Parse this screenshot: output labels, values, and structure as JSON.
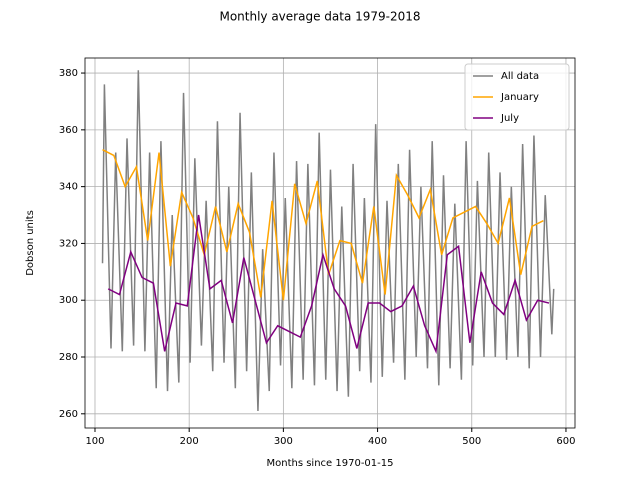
{
  "chart_data": {
    "type": "line",
    "title": "Monthly average data 1979-2018",
    "xlabel": "Months since 1970-01-15",
    "ylabel": "Dobson units",
    "xlim": [
      89.4,
      609.6
    ],
    "ylim": [
      255,
      385.3
    ],
    "xticks": [
      100,
      200,
      300,
      400,
      500,
      600
    ],
    "yticks": [
      260,
      280,
      300,
      320,
      340,
      360,
      380
    ],
    "grid": true,
    "legend": "upper right",
    "series": [
      {
        "name": "All data",
        "color": "#808080",
        "x": [
          108,
          110,
          117,
          122,
          129,
          134,
          141,
          146,
          153,
          158,
          165,
          170,
          177,
          182,
          189,
          194,
          201,
          206,
          213,
          218,
          225,
          230,
          237,
          242,
          249,
          254,
          261,
          266,
          273,
          278,
          285,
          290,
          297,
          302,
          309,
          314,
          321,
          326,
          333,
          338,
          345,
          350,
          357,
          362,
          369,
          374,
          381,
          386,
          393,
          398,
          405,
          410,
          417,
          422,
          429,
          434,
          441,
          446,
          453,
          458,
          465,
          470,
          477,
          482,
          489,
          494,
          501,
          506,
          513,
          518,
          525,
          530,
          537,
          542,
          549,
          554,
          561,
          566,
          573,
          578,
          585,
          587
        ],
        "values": [
          313,
          376,
          283,
          352,
          282,
          357,
          284,
          381,
          282,
          352,
          269,
          356,
          268,
          330,
          271,
          373,
          278,
          350,
          284,
          335,
          275,
          363,
          278,
          340,
          269,
          366,
          275,
          345,
          261,
          318,
          268,
          352,
          277,
          336,
          269,
          349,
          272,
          348,
          270,
          359,
          272,
          346,
          268,
          333,
          266,
          348,
          275,
          336,
          271,
          362,
          273,
          335,
          278,
          348,
          272,
          353,
          280,
          340,
          276,
          356,
          270,
          344,
          276,
          334,
          272,
          356,
          277,
          342,
          280,
          352,
          280,
          345,
          279,
          340,
          280,
          355,
          276,
          358,
          280,
          337,
          288,
          304
        ]
      },
      {
        "name": "January",
        "color": "#ffa500",
        "x": [
          108,
          120,
          132,
          144,
          156,
          168,
          180,
          192,
          204,
          216,
          228,
          240,
          252,
          264,
          276,
          288,
          300,
          312,
          324,
          336,
          348,
          360,
          372,
          384,
          396,
          408,
          420,
          432,
          444,
          456,
          468,
          480,
          492,
          504,
          516,
          528,
          540,
          552,
          564,
          576
        ],
        "values": [
          353,
          351,
          340,
          347,
          321,
          352,
          312,
          338,
          329,
          316,
          333,
          317,
          334,
          324,
          301,
          335,
          300,
          341,
          327,
          342,
          309,
          321,
          320,
          306,
          333,
          302,
          344,
          337,
          329,
          339,
          316,
          329,
          331,
          333,
          327,
          320,
          336,
          309,
          326,
          328
        ]
      },
      {
        "name": "July",
        "color": "#800080",
        "x": [
          114,
          126,
          138,
          150,
          162,
          174,
          186,
          198,
          210,
          222,
          234,
          246,
          258,
          270,
          282,
          294,
          306,
          318,
          330,
          342,
          354,
          366,
          378,
          390,
          402,
          414,
          426,
          438,
          450,
          462,
          474,
          486,
          498,
          510,
          522,
          534,
          546,
          558,
          570,
          582
        ],
        "values": [
          304,
          302,
          317,
          308,
          306,
          282,
          299,
          298,
          330,
          304,
          307,
          292,
          315,
          300,
          285,
          291,
          289,
          287,
          298,
          316,
          304,
          298,
          283,
          299,
          299,
          296,
          298,
          305,
          291,
          282,
          316,
          319,
          285,
          310,
          299,
          295,
          307,
          293,
          300,
          299
        ]
      }
    ]
  }
}
